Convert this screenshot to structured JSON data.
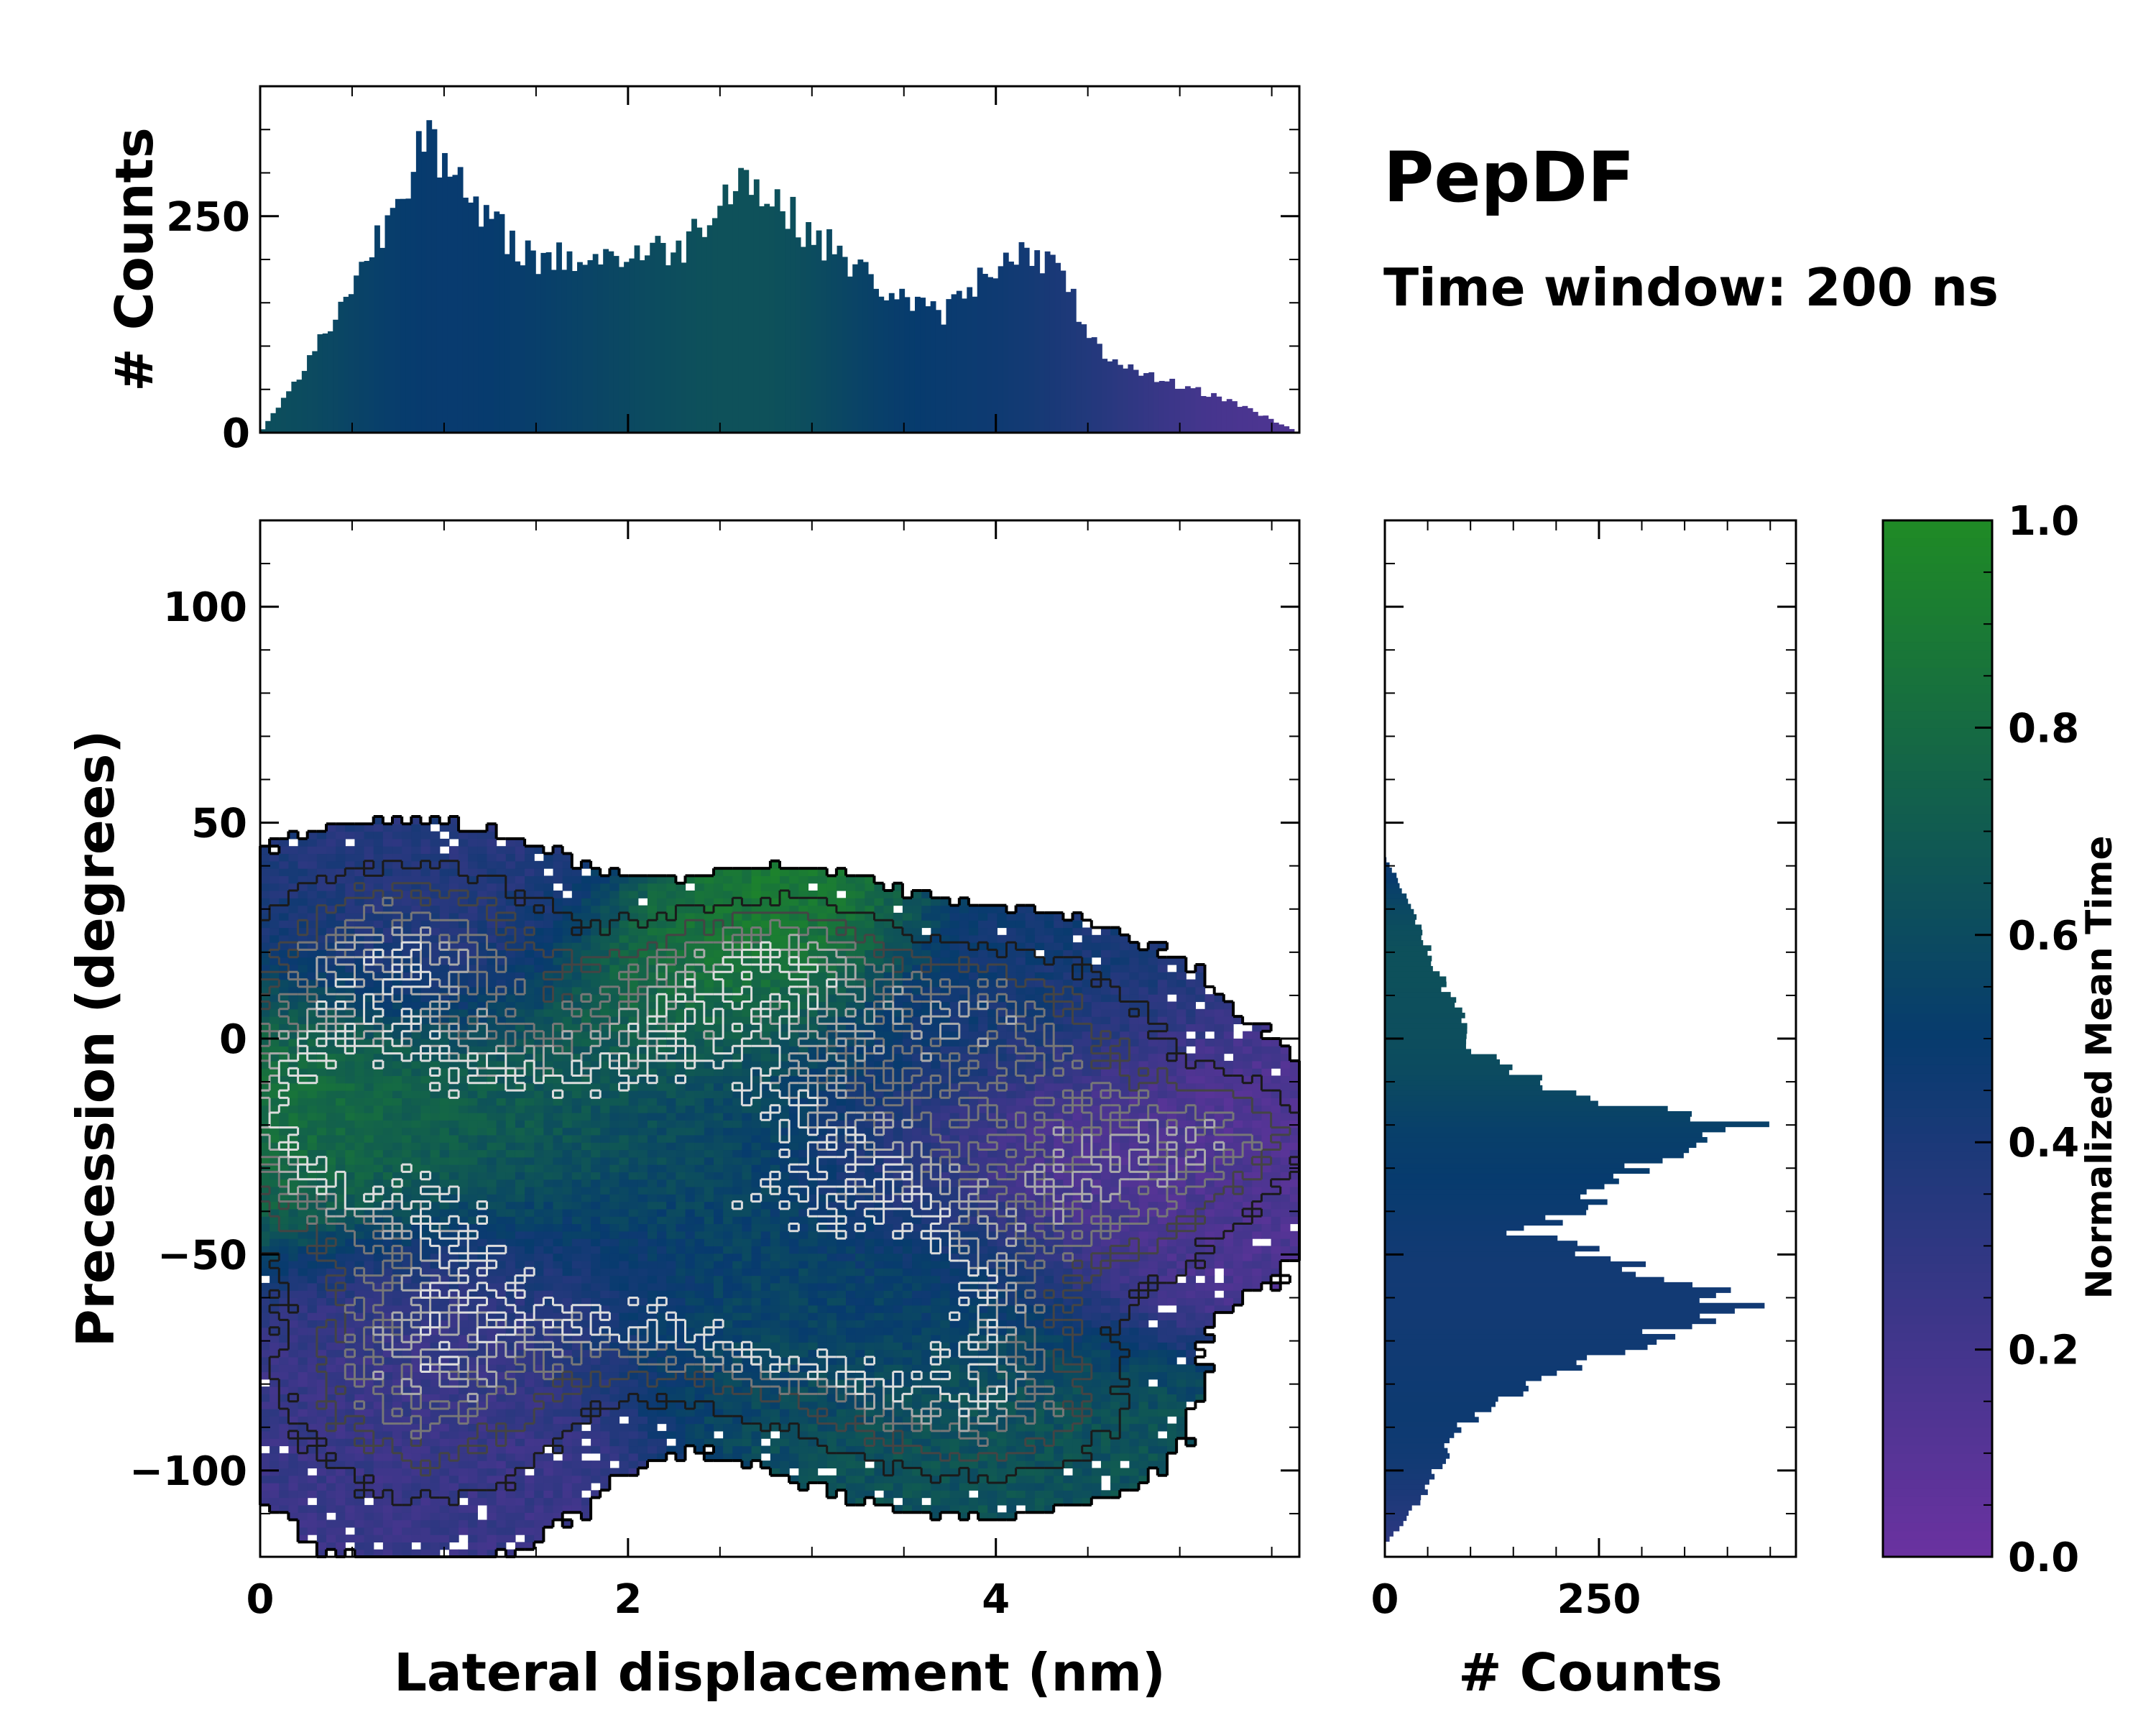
{
  "title": "PepDF",
  "subtitle": "Time window: 200 ns",
  "colors": {
    "low": "#6a32a0",
    "mid": "#073b6e",
    "high": "#1f8a26",
    "frame": "#000000"
  },
  "chart_data": [
    {
      "name": "top-marginal-histogram",
      "type": "bar",
      "xlim": [
        0,
        5.65
      ],
      "ylim": [
        0,
        400
      ],
      "ylabel": "# Counts",
      "yticks": [
        0,
        250
      ],
      "peaks": [
        {
          "x": 0.9,
          "value": 360,
          "width": 0.45
        },
        {
          "x": 2.6,
          "value": 300,
          "width": 0.55
        },
        {
          "x": 4.1,
          "value": 215,
          "width": 0.45
        }
      ],
      "baseline": [
        {
          "x": 0.0,
          "value": 0
        },
        {
          "x": 0.2,
          "value": 60
        },
        {
          "x": 0.5,
          "value": 170
        },
        {
          "x": 0.9,
          "value": 330
        },
        {
          "x": 1.2,
          "value": 250
        },
        {
          "x": 1.5,
          "value": 200
        },
        {
          "x": 2.0,
          "value": 205
        },
        {
          "x": 2.3,
          "value": 215
        },
        {
          "x": 2.6,
          "value": 300
        },
        {
          "x": 3.0,
          "value": 230
        },
        {
          "x": 3.4,
          "value": 165
        },
        {
          "x": 3.7,
          "value": 135
        },
        {
          "x": 4.0,
          "value": 195
        },
        {
          "x": 4.3,
          "value": 200
        },
        {
          "x": 4.6,
          "value": 80
        },
        {
          "x": 5.0,
          "value": 55
        },
        {
          "x": 5.3,
          "value": 35
        },
        {
          "x": 5.65,
          "value": 0
        }
      ]
    },
    {
      "name": "right-marginal-histogram",
      "type": "bar",
      "orientation": "horizontal",
      "ylim": [
        -120,
        120
      ],
      "xlim": [
        0,
        480
      ],
      "xlabel": "# Counts",
      "xticks": [
        0,
        250
      ],
      "profile": [
        {
          "y": -117,
          "value": 0
        },
        {
          "y": -110,
          "value": 30
        },
        {
          "y": -100,
          "value": 60
        },
        {
          "y": -90,
          "value": 90
        },
        {
          "y": -80,
          "value": 170
        },
        {
          "y": -70,
          "value": 310
        },
        {
          "y": -61,
          "value": 420
        },
        {
          "y": -52,
          "value": 290
        },
        {
          "y": -45,
          "value": 160
        },
        {
          "y": -38,
          "value": 250
        },
        {
          "y": -28,
          "value": 310
        },
        {
          "y": -20,
          "value": 410
        },
        {
          "y": -12,
          "value": 200
        },
        {
          "y": -3,
          "value": 110
        },
        {
          "y": 10,
          "value": 75
        },
        {
          "y": 25,
          "value": 40
        },
        {
          "y": 37,
          "value": 15
        },
        {
          "y": 42,
          "value": 0
        }
      ]
    },
    {
      "name": "joint-heatmap",
      "type": "heatmap",
      "xlabel": "Lateral displacement (nm)",
      "ylabel": "Precession (degrees)",
      "xlim": [
        0,
        5.65
      ],
      "ylim": [
        -120,
        120
      ],
      "xticks": [
        0,
        2,
        4
      ],
      "yticks": [
        100,
        50,
        0,
        -50,
        -100
      ],
      "blobs": [
        {
          "x": 0.8,
          "y": 20,
          "sx": 0.55,
          "sy": 14,
          "time": 0.35,
          "weight": 1.0
        },
        {
          "x": 0.3,
          "y": -15,
          "sx": 0.35,
          "sy": 18,
          "time": 0.85,
          "weight": 1.0
        },
        {
          "x": 1.0,
          "y": -20,
          "sx": 0.6,
          "sy": 16,
          "time": 0.75,
          "weight": 1.2
        },
        {
          "x": 1.9,
          "y": -30,
          "sx": 0.6,
          "sy": 16,
          "time": 0.65,
          "weight": 1.1
        },
        {
          "x": 2.5,
          "y": -20,
          "sx": 0.5,
          "sy": 15,
          "time": 0.55,
          "weight": 1.0
        },
        {
          "x": 2.4,
          "y": 10,
          "sx": 0.5,
          "sy": 12,
          "time": 0.85,
          "weight": 0.9
        },
        {
          "x": 2.9,
          "y": 20,
          "sx": 0.35,
          "sy": 9,
          "time": 0.95,
          "weight": 0.6
        },
        {
          "x": 0.9,
          "y": -75,
          "sx": 0.55,
          "sy": 22,
          "time": 0.25,
          "weight": 1.0
        },
        {
          "x": 1.8,
          "y": -55,
          "sx": 0.5,
          "sy": 14,
          "time": 0.3,
          "weight": 0.8
        },
        {
          "x": 2.8,
          "y": -62,
          "sx": 0.6,
          "sy": 14,
          "time": 0.6,
          "weight": 1.2
        },
        {
          "x": 3.5,
          "y": -60,
          "sx": 0.55,
          "sy": 14,
          "time": 0.5,
          "weight": 1.0
        },
        {
          "x": 3.9,
          "y": -85,
          "sx": 0.55,
          "sy": 12,
          "time": 0.65,
          "weight": 0.9
        },
        {
          "x": 3.8,
          "y": 5,
          "sx": 0.6,
          "sy": 12,
          "time": 0.45,
          "weight": 0.9
        },
        {
          "x": 4.6,
          "y": -30,
          "sx": 0.55,
          "sy": 18,
          "time": 0.15,
          "weight": 1.0
        },
        {
          "x": 5.3,
          "y": -22,
          "sx": 0.3,
          "sy": 8,
          "time": 0.12,
          "weight": 0.5
        },
        {
          "x": 3.4,
          "y": -30,
          "sx": 0.4,
          "sy": 14,
          "time": 0.3,
          "weight": 0.7
        }
      ]
    },
    {
      "name": "colorbar",
      "type": "colorbar",
      "label": "Normalized Mean Time",
      "range": [
        0,
        1
      ],
      "ticks": [
        "0.0",
        "0.2",
        "0.4",
        "0.6",
        "0.8",
        "1.0"
      ]
    }
  ]
}
